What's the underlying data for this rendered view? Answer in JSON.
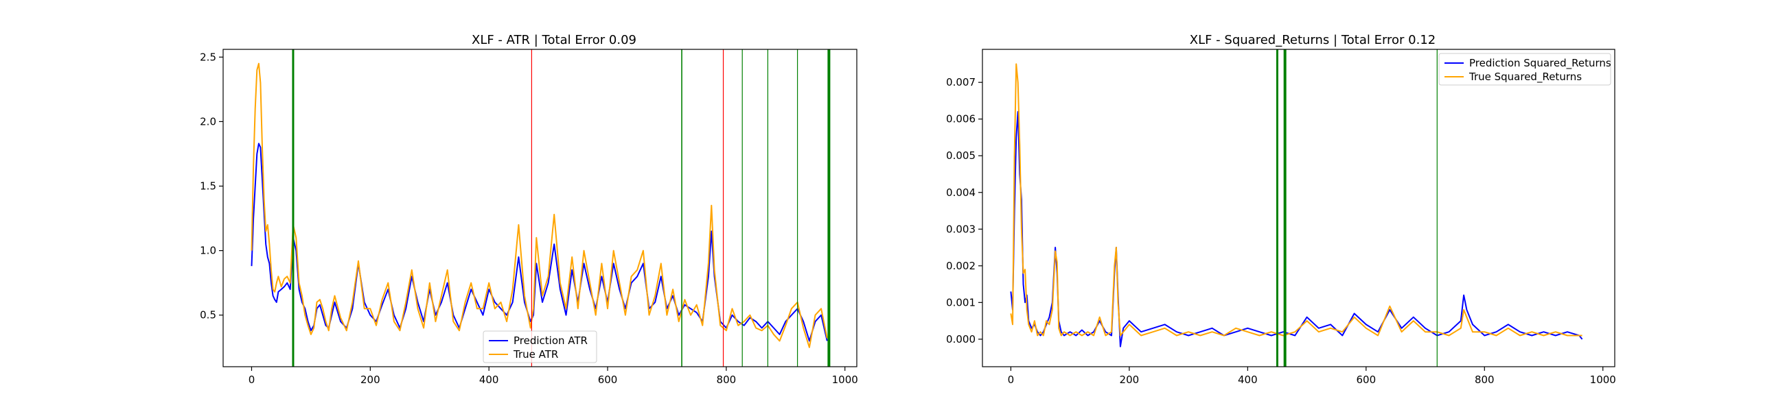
{
  "chart_data": [
    {
      "type": "line",
      "title": "XLF - ATR | Total Error 0.09",
      "xlabel": "",
      "ylabel": "",
      "xlim": [
        -48,
        1020
      ],
      "ylim": [
        0.1,
        2.56
      ],
      "xticks": [
        0,
        200,
        400,
        600,
        800,
        1000
      ],
      "xtick_labels": [
        "0",
        "200",
        "400",
        "600",
        "800",
        "1000"
      ],
      "yticks": [
        0.5,
        1.0,
        1.5,
        2.0,
        2.5
      ],
      "ytick_labels": [
        "0.5",
        "1.0",
        "1.5",
        "2.0",
        "2.5"
      ],
      "grid": false,
      "legend_position": "bottom-center",
      "series": [
        {
          "name": "Prediction ATR",
          "color": "#0000ff",
          "x": [
            0,
            3,
            6,
            9,
            12,
            15,
            18,
            21,
            24,
            27,
            30,
            33,
            36,
            39,
            42,
            45,
            50,
            55,
            60,
            65,
            70,
            75,
            80,
            85,
            90,
            95,
            100,
            105,
            110,
            115,
            120,
            125,
            130,
            135,
            140,
            150,
            160,
            170,
            180,
            190,
            200,
            210,
            220,
            230,
            240,
            250,
            260,
            270,
            280,
            290,
            300,
            310,
            320,
            330,
            340,
            350,
            360,
            370,
            380,
            390,
            400,
            410,
            420,
            430,
            440,
            450,
            460,
            470,
            475,
            480,
            490,
            500,
            510,
            520,
            530,
            540,
            550,
            560,
            570,
            580,
            590,
            600,
            610,
            620,
            630,
            640,
            650,
            660,
            670,
            680,
            690,
            700,
            710,
            720,
            730,
            740,
            750,
            760,
            770,
            775,
            780,
            790,
            800,
            810,
            820,
            830,
            840,
            850,
            860,
            870,
            880,
            890,
            900,
            910,
            920,
            930,
            940,
            950,
            960,
            970
          ],
          "y": [
            0.88,
            1.25,
            1.5,
            1.75,
            1.83,
            1.8,
            1.55,
            1.3,
            1.05,
            0.95,
            0.9,
            0.75,
            0.65,
            0.62,
            0.6,
            0.68,
            0.7,
            0.72,
            0.75,
            0.7,
            1.1,
            1.0,
            0.7,
            0.6,
            0.55,
            0.45,
            0.38,
            0.42,
            0.55,
            0.58,
            0.5,
            0.42,
            0.4,
            0.5,
            0.6,
            0.45,
            0.4,
            0.55,
            0.9,
            0.6,
            0.5,
            0.45,
            0.58,
            0.7,
            0.5,
            0.4,
            0.55,
            0.8,
            0.6,
            0.45,
            0.7,
            0.5,
            0.6,
            0.75,
            0.5,
            0.4,
            0.55,
            0.7,
            0.6,
            0.5,
            0.7,
            0.6,
            0.55,
            0.5,
            0.6,
            0.95,
            0.6,
            0.45,
            0.5,
            0.9,
            0.6,
            0.75,
            1.05,
            0.7,
            0.5,
            0.85,
            0.6,
            0.9,
            0.7,
            0.55,
            0.8,
            0.6,
            0.9,
            0.7,
            0.55,
            0.75,
            0.8,
            0.9,
            0.55,
            0.6,
            0.8,
            0.55,
            0.65,
            0.5,
            0.58,
            0.55,
            0.52,
            0.45,
            0.8,
            1.15,
            0.8,
            0.45,
            0.4,
            0.5,
            0.45,
            0.42,
            0.48,
            0.45,
            0.4,
            0.45,
            0.4,
            0.35,
            0.45,
            0.5,
            0.55,
            0.45,
            0.3,
            0.45,
            0.5,
            0.3
          ]
        },
        {
          "name": "True ATR",
          "color": "#ffa500",
          "x": [
            0,
            3,
            6,
            9,
            12,
            15,
            18,
            21,
            24,
            27,
            30,
            33,
            36,
            39,
            42,
            45,
            50,
            55,
            60,
            65,
            70,
            75,
            80,
            85,
            90,
            95,
            100,
            105,
            110,
            115,
            120,
            125,
            130,
            135,
            140,
            150,
            160,
            170,
            180,
            190,
            200,
            210,
            220,
            230,
            240,
            250,
            260,
            270,
            280,
            290,
            300,
            310,
            320,
            330,
            340,
            350,
            360,
            370,
            380,
            390,
            400,
            410,
            420,
            430,
            440,
            450,
            460,
            470,
            475,
            480,
            490,
            500,
            510,
            520,
            530,
            540,
            550,
            560,
            570,
            580,
            590,
            600,
            610,
            620,
            630,
            640,
            650,
            660,
            670,
            680,
            690,
            700,
            710,
            720,
            730,
            740,
            750,
            760,
            770,
            775,
            780,
            790,
            800,
            810,
            820,
            830,
            840,
            850,
            860,
            870,
            880,
            890,
            900,
            910,
            920,
            930,
            940,
            950,
            960,
            970
          ],
          "y": [
            1.0,
            1.65,
            2.1,
            2.4,
            2.45,
            2.3,
            1.8,
            1.4,
            1.15,
            1.2,
            1.05,
            0.85,
            0.7,
            0.68,
            0.75,
            0.8,
            0.72,
            0.78,
            0.8,
            0.75,
            1.2,
            1.1,
            0.75,
            0.65,
            0.5,
            0.42,
            0.35,
            0.4,
            0.6,
            0.62,
            0.55,
            0.45,
            0.38,
            0.55,
            0.65,
            0.48,
            0.38,
            0.6,
            0.92,
            0.55,
            0.55,
            0.42,
            0.62,
            0.75,
            0.45,
            0.38,
            0.6,
            0.85,
            0.55,
            0.4,
            0.75,
            0.45,
            0.65,
            0.85,
            0.45,
            0.38,
            0.6,
            0.75,
            0.55,
            0.55,
            0.75,
            0.55,
            0.6,
            0.45,
            0.7,
            1.2,
            0.65,
            0.4,
            0.55,
            1.1,
            0.65,
            0.8,
            1.28,
            0.75,
            0.55,
            0.95,
            0.55,
            1.0,
            0.75,
            0.5,
            0.9,
            0.55,
            1.0,
            0.75,
            0.5,
            0.8,
            0.85,
            1.0,
            0.5,
            0.65,
            0.9,
            0.5,
            0.7,
            0.45,
            0.62,
            0.5,
            0.58,
            0.42,
            0.9,
            1.35,
            0.85,
            0.42,
            0.38,
            0.55,
            0.42,
            0.45,
            0.5,
            0.4,
            0.38,
            0.42,
            0.35,
            0.3,
            0.42,
            0.55,
            0.6,
            0.4,
            0.25,
            0.5,
            0.55,
            0.32
          ]
        }
      ],
      "vlines": [
        {
          "x": 70,
          "color": "#008000",
          "width": 3
        },
        {
          "x": 472,
          "color": "#ff0000",
          "width": 1.2
        },
        {
          "x": 725,
          "color": "#008000",
          "width": 1.6
        },
        {
          "x": 795,
          "color": "#ff0000",
          "width": 1.2
        },
        {
          "x": 827,
          "color": "#008000",
          "width": 1.2
        },
        {
          "x": 870,
          "color": "#008000",
          "width": 1.2
        },
        {
          "x": 920,
          "color": "#008000",
          "width": 1.2
        },
        {
          "x": 973,
          "color": "#008000",
          "width": 4
        }
      ]
    },
    {
      "type": "line",
      "title": "XLF - Squared_Returns | Total Error 0.12",
      "xlabel": "",
      "ylabel": "",
      "xlim": [
        -48,
        1020
      ],
      "ylim": [
        -0.00075,
        0.0079
      ],
      "xticks": [
        0,
        200,
        400,
        600,
        800,
        1000
      ],
      "xtick_labels": [
        "0",
        "200",
        "400",
        "600",
        "800",
        "1000"
      ],
      "yticks": [
        0.0,
        0.001,
        0.002,
        0.003,
        0.004,
        0.005,
        0.006,
        0.007
      ],
      "ytick_labels": [
        "0.000",
        "0.001",
        "0.002",
        "0.003",
        "0.004",
        "0.005",
        "0.006",
        "0.007"
      ],
      "grid": false,
      "legend_position": "top-right",
      "series": [
        {
          "name": "Prediction Squared_Returns",
          "color": "#0000ff",
          "x": [
            0,
            3,
            6,
            9,
            12,
            15,
            18,
            21,
            24,
            27,
            30,
            35,
            40,
            45,
            50,
            55,
            60,
            65,
            70,
            75,
            78,
            81,
            85,
            90,
            100,
            110,
            120,
            130,
            140,
            150,
            160,
            170,
            175,
            178,
            181,
            185,
            190,
            200,
            220,
            240,
            260,
            280,
            300,
            320,
            340,
            360,
            380,
            400,
            420,
            440,
            460,
            480,
            500,
            520,
            540,
            560,
            580,
            600,
            620,
            640,
            660,
            680,
            700,
            720,
            740,
            760,
            765,
            770,
            780,
            800,
            820,
            840,
            860,
            880,
            900,
            920,
            940,
            960,
            965
          ],
          "y": [
            0.0013,
            0.0008,
            0.0035,
            0.0055,
            0.0062,
            0.0045,
            0.0038,
            0.0015,
            0.001,
            0.0012,
            0.0005,
            0.0003,
            0.0004,
            0.0002,
            0.0001,
            0.0002,
            0.0004,
            0.0006,
            0.001,
            0.0025,
            0.0018,
            0.0005,
            0.0002,
            0.0001,
            0.0002,
            0.0001,
            0.00025,
            0.0001,
            0.0002,
            0.0005,
            0.0002,
            0.0001,
            0.0018,
            0.0025,
            0.0012,
            -0.0002,
            0.0003,
            0.0005,
            0.0002,
            0.0003,
            0.0004,
            0.0002,
            0.0001,
            0.0002,
            0.0003,
            0.0001,
            0.0002,
            0.0003,
            0.0002,
            0.0001,
            0.0002,
            0.0001,
            0.0006,
            0.0003,
            0.0004,
            0.0001,
            0.0007,
            0.0004,
            0.0002,
            0.0008,
            0.0003,
            0.0006,
            0.0003,
            0.0001,
            0.0002,
            0.0005,
            0.0012,
            0.0008,
            0.0004,
            0.0001,
            0.0002,
            0.0004,
            0.0002,
            0.0001,
            0.0002,
            0.0001,
            0.0002,
            0.0001,
            0.0
          ]
        },
        {
          "name": "True Squared_Returns",
          "color": "#ffa500",
          "x": [
            0,
            3,
            6,
            9,
            12,
            15,
            18,
            21,
            24,
            27,
            30,
            35,
            40,
            45,
            50,
            55,
            60,
            65,
            70,
            75,
            78,
            81,
            85,
            90,
            100,
            110,
            120,
            130,
            140,
            150,
            160,
            170,
            175,
            178,
            181,
            185,
            190,
            200,
            220,
            240,
            260,
            280,
            300,
            320,
            340,
            360,
            380,
            400,
            420,
            440,
            460,
            480,
            500,
            520,
            540,
            560,
            580,
            600,
            620,
            640,
            660,
            680,
            700,
            720,
            740,
            760,
            765,
            770,
            780,
            800,
            820,
            840,
            860,
            880,
            900,
            920,
            940,
            960,
            965
          ],
          "y": [
            0.0007,
            0.0004,
            0.005,
            0.0075,
            0.007,
            0.0053,
            0.003,
            0.0018,
            0.0019,
            0.0008,
            0.0004,
            0.0002,
            0.0005,
            0.0001,
            0.0002,
            0.0001,
            0.0005,
            0.0004,
            0.0008,
            0.0024,
            0.0021,
            0.0003,
            0.0001,
            0.0002,
            0.0001,
            0.0002,
            0.0001,
            0.0002,
            0.0001,
            0.0006,
            0.0001,
            0.0002,
            0.002,
            0.0025,
            0.001,
            0.0001,
            0.0002,
            0.0004,
            0.0001,
            0.0002,
            0.0003,
            0.0001,
            0.0002,
            0.0001,
            0.0002,
            0.0001,
            0.0003,
            0.0002,
            0.0001,
            0.0002,
            0.0001,
            0.0002,
            0.0005,
            0.0002,
            0.0003,
            0.0002,
            0.0006,
            0.0003,
            0.0001,
            0.0009,
            0.0002,
            0.0005,
            0.0002,
            0.0002,
            0.0001,
            0.0003,
            0.0008,
            0.0006,
            0.0002,
            0.0002,
            0.0001,
            0.0003,
            0.0001,
            0.0002,
            0.0001,
            0.0002,
            0.0001,
            0.0001,
            0.0001
          ]
        }
      ],
      "vlines": [
        {
          "x": 450,
          "color": "#008000",
          "width": 3
        },
        {
          "x": 463,
          "color": "#008000",
          "width": 4
        },
        {
          "x": 720,
          "color": "#008000",
          "width": 1.2
        }
      ]
    }
  ]
}
